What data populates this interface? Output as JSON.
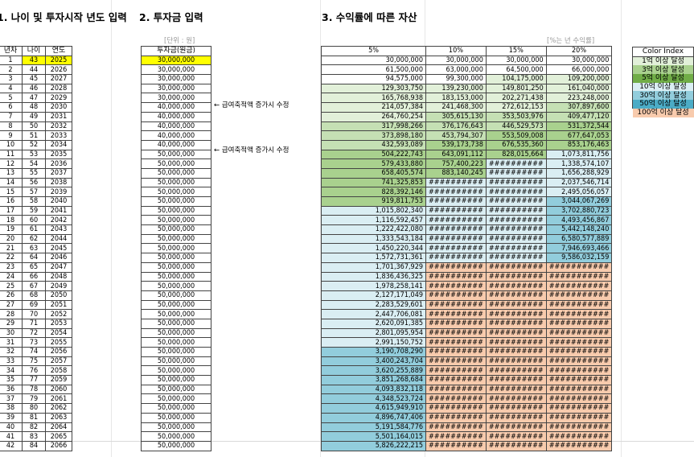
{
  "headings": {
    "age_year": "1. 나이 및 투자시작 년도 입력",
    "amount": "2. 투자금 입력",
    "returns": "3. 수익률에 따른 자산"
  },
  "unit_labels": {
    "won": "[단위 : 원]",
    "rate": "[%는 년 수익률]"
  },
  "table1": {
    "headers": [
      "년차",
      "나이",
      "연도"
    ],
    "highlight_color": "#ffff00",
    "rows": [
      [
        "1",
        "43",
        "2025"
      ],
      [
        "2",
        "44",
        "2026"
      ],
      [
        "3",
        "45",
        "2027"
      ],
      [
        "4",
        "46",
        "2028"
      ],
      [
        "5",
        "47",
        "2029"
      ],
      [
        "6",
        "48",
        "2030"
      ],
      [
        "7",
        "49",
        "2031"
      ],
      [
        "8",
        "50",
        "2032"
      ],
      [
        "9",
        "51",
        "2033"
      ],
      [
        "10",
        "52",
        "2034"
      ],
      [
        "11",
        "53",
        "2035"
      ],
      [
        "12",
        "54",
        "2036"
      ],
      [
        "13",
        "55",
        "2037"
      ],
      [
        "14",
        "56",
        "2038"
      ],
      [
        "15",
        "57",
        "2039"
      ],
      [
        "16",
        "58",
        "2040"
      ],
      [
        "17",
        "59",
        "2041"
      ],
      [
        "18",
        "60",
        "2042"
      ],
      [
        "19",
        "61",
        "2043"
      ],
      [
        "20",
        "62",
        "2044"
      ],
      [
        "21",
        "63",
        "2045"
      ],
      [
        "22",
        "64",
        "2046"
      ],
      [
        "23",
        "65",
        "2047"
      ],
      [
        "24",
        "66",
        "2048"
      ],
      [
        "25",
        "67",
        "2049"
      ],
      [
        "26",
        "68",
        "2050"
      ],
      [
        "27",
        "69",
        "2051"
      ],
      [
        "28",
        "70",
        "2052"
      ],
      [
        "29",
        "71",
        "2053"
      ],
      [
        "30",
        "72",
        "2054"
      ],
      [
        "31",
        "73",
        "2055"
      ],
      [
        "32",
        "74",
        "2056"
      ],
      [
        "33",
        "75",
        "2057"
      ],
      [
        "34",
        "76",
        "2058"
      ],
      [
        "35",
        "77",
        "2059"
      ],
      [
        "36",
        "78",
        "2060"
      ],
      [
        "37",
        "79",
        "2061"
      ],
      [
        "38",
        "80",
        "2062"
      ],
      [
        "39",
        "81",
        "2063"
      ],
      [
        "40",
        "82",
        "2064"
      ],
      [
        "41",
        "83",
        "2065"
      ],
      [
        "42",
        "84",
        "2066"
      ]
    ]
  },
  "table2": {
    "header": "투자금(원금)",
    "values": [
      "30,000,000",
      "30,000,000",
      "30,000,000",
      "30,000,000",
      "30,000,000",
      "40,000,000",
      "40,000,000",
      "40,000,000",
      "40,000,000",
      "40,000,000",
      "50,000,000",
      "50,000,000",
      "50,000,000",
      "50,000,000",
      "50,000,000",
      "50,000,000",
      "50,000,000",
      "50,000,000",
      "50,000,000",
      "50,000,000",
      "50,000,000",
      "50,000,000",
      "50,000,000",
      "50,000,000",
      "50,000,000",
      "50,000,000",
      "50,000,000",
      "50,000,000",
      "50,000,000",
      "50,000,000",
      "50,000,000",
      "50,000,000",
      "50,000,000",
      "50,000,000",
      "50,000,000",
      "50,000,000",
      "50,000,000",
      "50,000,000",
      "50,000,000",
      "50,000,000",
      "50,000,000",
      "50,000,000"
    ]
  },
  "notes": {
    "note1": "← 급여축적액 증가시 수정",
    "note2": "← 급여축적액 증가시 수정"
  },
  "table3": {
    "headers": [
      "5%",
      "10%",
      "15%",
      "20%"
    ],
    "rows": [
      [
        "30,000,000",
        "30,000,000",
        "30,000,000",
        "30,000,000"
      ],
      [
        "61,500,000",
        "63,000,000",
        "64,500,000",
        "66,000,000"
      ],
      [
        "94,575,000",
        "99,300,000",
        "104,175,000",
        "109,200,000"
      ],
      [
        "129,303,750",
        "139,230,000",
        "149,801,250",
        "161,040,000"
      ],
      [
        "165,768,938",
        "183,153,000",
        "202,271,438",
        "223,248,000"
      ],
      [
        "214,057,384",
        "241,468,300",
        "272,612,153",
        "307,897,600"
      ],
      [
        "264,760,254",
        "305,615,130",
        "353,503,976",
        "409,477,120"
      ],
      [
        "317,998,266",
        "376,176,643",
        "446,529,573",
        "531,372,544"
      ],
      [
        "373,898,180",
        "453,794,307",
        "553,509,008",
        "677,647,053"
      ],
      [
        "432,593,089",
        "539,173,738",
        "676,535,360",
        "853,176,463"
      ],
      [
        "504,222,743",
        "643,091,112",
        "828,015,664",
        "1,073,811,756"
      ],
      [
        "579,433,880",
        "757,400,223",
        "##########",
        "1,338,574,107"
      ],
      [
        "658,405,574",
        "883,140,245",
        "##########",
        "1,656,288,929"
      ],
      [
        "741,325,853",
        "##########",
        "##########",
        "2,037,546,714"
      ],
      [
        "828,392,146",
        "##########",
        "##########",
        "2,495,056,057"
      ],
      [
        "919,811,753",
        "##########",
        "##########",
        "3,044,067,269"
      ],
      [
        "1,015,802,340",
        "##########",
        "##########",
        "3,702,880,723"
      ],
      [
        "1,116,592,457",
        "##########",
        "##########",
        "4,493,456,867"
      ],
      [
        "1,222,422,080",
        "##########",
        "##########",
        "5,442,148,240"
      ],
      [
        "1,333,543,184",
        "##########",
        "##########",
        "6,580,577,889"
      ],
      [
        "1,450,220,344",
        "##########",
        "##########",
        "7,946,693,466"
      ],
      [
        "1,572,731,361",
        "##########",
        "##########",
        "9,586,032,159"
      ],
      [
        "1,701,367,929",
        "##########",
        "##########",
        "###########"
      ],
      [
        "1,836,436,325",
        "##########",
        "##########",
        "###########"
      ],
      [
        "1,978,258,141",
        "##########",
        "##########",
        "###########"
      ],
      [
        "2,127,171,049",
        "##########",
        "##########",
        "###########"
      ],
      [
        "2,283,529,601",
        "##########",
        "##########",
        "###########"
      ],
      [
        "2,447,706,081",
        "##########",
        "##########",
        "###########"
      ],
      [
        "2,620,091,385",
        "##########",
        "##########",
        "###########"
      ],
      [
        "2,801,095,954",
        "##########",
        "##########",
        "###########"
      ],
      [
        "2,991,150,752",
        "##########",
        "##########",
        "###########"
      ],
      [
        "3,190,708,290",
        "##########",
        "##########",
        "###########"
      ],
      [
        "3,400,243,704",
        "##########",
        "##########",
        "###########"
      ],
      [
        "3,620,255,889",
        "##########",
        "##########",
        "###########"
      ],
      [
        "3,851,268,684",
        "##########",
        "##########",
        "###########"
      ],
      [
        "4,093,832,118",
        "##########",
        "##########",
        "###########"
      ],
      [
        "4,348,523,724",
        "##########",
        "##########",
        "###########"
      ],
      [
        "4,615,949,910",
        "##########",
        "##########",
        "###########"
      ],
      [
        "4,896,747,406",
        "##########",
        "##########",
        "###########"
      ],
      [
        "5,191,584,776",
        "##########",
        "##########",
        "###########"
      ],
      [
        "5,501,164,015",
        "##########",
        "##########",
        "###########"
      ],
      [
        "5,826,222,215",
        "##########",
        "##########",
        "###########"
      ]
    ],
    "tier_colors": [
      "#ffffff",
      "#e2f0d9",
      "#c5e0b4",
      "#a9d18e",
      "#daeef3",
      "#92cddc",
      "#f8cbad"
    ]
  },
  "color_index": {
    "title": "Color Index",
    "items": [
      {
        "label": "1억 이상 달성",
        "color": "#e2f0d9"
      },
      {
        "label": "3억 이상 달성",
        "color": "#a9d18e"
      },
      {
        "label": "5억 이상 달성",
        "color": "#70ad47"
      },
      {
        "label": "10억 이상 달성",
        "color": "#daeef3"
      },
      {
        "label": "30억 이상 달성",
        "color": "#92cddc"
      },
      {
        "label": "50억 이상 달성",
        "color": "#4bacc6"
      },
      {
        "label": "100억 이상 달성",
        "color": "#f8cbad"
      }
    ]
  }
}
